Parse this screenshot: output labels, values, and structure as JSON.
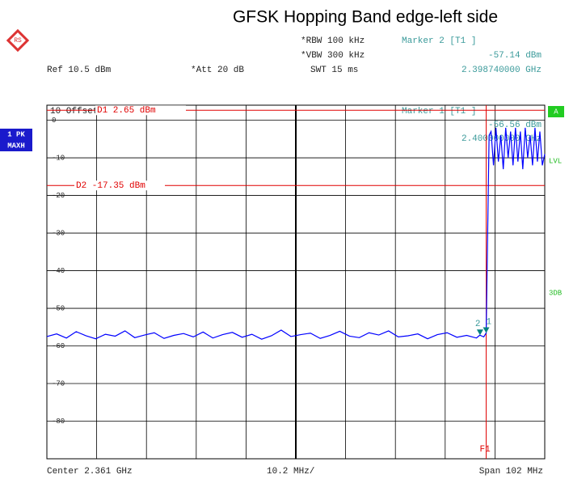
{
  "chart_data": {
    "type": "line",
    "title": "GFSK Hopping Band edge-left side",
    "settings": {
      "rbw": "*RBW 100 kHz",
      "vbw": "*VBW 300 kHz",
      "swt": "SWT 15 ms",
      "ref": "Ref 10.5 dBm",
      "att": "*Att 20 dB",
      "offset": "10 Offset 0.5 dB",
      "center": "Center 2.361 GHz",
      "div": "10.2 MHz/",
      "span": "Span 102 MHz",
      "trace_mode": [
        "1 PK",
        "MAXH"
      ],
      "side_flags": [
        "A",
        "LVL",
        "3DB"
      ]
    },
    "marker_readouts": [
      {
        "title": "Marker 2 [T1 ]",
        "level": "-57.14 dBm",
        "freq": "2.398740000 GHz"
      },
      {
        "title": "Marker 1 [T1 ]",
        "level": "-56.56 dBm",
        "freq": "2.400000000 GHz"
      }
    ],
    "xlim": [
      2.31,
      2.412
    ],
    "ylim": [
      -90,
      4
    ],
    "yticks": [
      0,
      -10,
      -20,
      -30,
      -40,
      -50,
      -60,
      -70,
      -80
    ],
    "grid": true,
    "display_lines": [
      {
        "label": "D1 2.65 dBm",
        "value": 2.65,
        "color": "#e00000"
      },
      {
        "label": "D2 -17.35 dBm",
        "value": -17.35,
        "color": "#e00000"
      }
    ],
    "frequency_lines": [
      {
        "label": "F1",
        "value": 2.4,
        "color": "#e00000"
      }
    ],
    "markers": [
      {
        "label": "2",
        "x": 2.39874,
        "y": -57.14,
        "color": "#008080"
      },
      {
        "label": "1",
        "x": 2.4,
        "y": -56.56,
        "color": "#008080"
      }
    ],
    "series": [
      {
        "name": "1 PK MAXH",
        "color": "#0000ff",
        "x": [
          2.31,
          2.312,
          2.314,
          2.316,
          2.318,
          2.32,
          2.322,
          2.324,
          2.326,
          2.328,
          2.33,
          2.332,
          2.334,
          2.336,
          2.338,
          2.34,
          2.342,
          2.344,
          2.346,
          2.348,
          2.35,
          2.352,
          2.354,
          2.356,
          2.358,
          2.36,
          2.362,
          2.364,
          2.366,
          2.368,
          2.37,
          2.372,
          2.374,
          2.376,
          2.378,
          2.38,
          2.382,
          2.384,
          2.386,
          2.388,
          2.39,
          2.392,
          2.394,
          2.396,
          2.398,
          2.3987,
          2.3995,
          2.4,
          2.4003,
          2.4006,
          2.401,
          2.4015,
          2.402,
          2.4025,
          2.403,
          2.4035,
          2.404,
          2.4045,
          2.405,
          2.4055,
          2.406,
          2.4065,
          2.407,
          2.4075,
          2.408,
          2.4085,
          2.409,
          2.4095,
          2.41,
          2.4105,
          2.411,
          2.4115,
          2.412
        ],
        "values": [
          -57.5,
          -56.8,
          -57.9,
          -56.2,
          -57.3,
          -58.1,
          -56.9,
          -57.4,
          -56.0,
          -57.8,
          -57.1,
          -56.5,
          -58.0,
          -57.2,
          -56.7,
          -57.6,
          -56.3,
          -57.9,
          -57.0,
          -56.4,
          -57.7,
          -56.9,
          -58.2,
          -57.3,
          -55.8,
          -57.5,
          -57.0,
          -56.6,
          -58.0,
          -57.2,
          -56.1,
          -57.4,
          -57.8,
          -56.5,
          -57.1,
          -56.0,
          -57.6,
          -57.3,
          -56.8,
          -58.1,
          -57.0,
          -56.5,
          -57.7,
          -57.2,
          -57.9,
          -57.14,
          -57.6,
          -56.56,
          -30,
          -4,
          -3,
          -12,
          -2,
          -11,
          -4,
          -13,
          -2,
          -10,
          -3,
          -12,
          -2,
          -11,
          -3,
          -13,
          -2,
          -10,
          -4,
          -12,
          -2,
          -11,
          -3,
          -12,
          -9
        ]
      }
    ]
  }
}
